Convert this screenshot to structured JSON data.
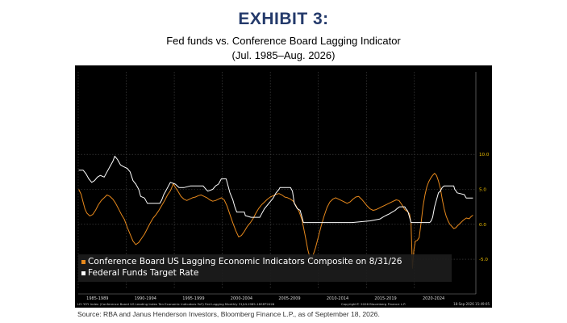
{
  "header": {
    "exhibit": "EXHIBIT 3:",
    "title": "Fed funds vs. Conference Board Lagging Indicator",
    "subtitle": "(Jul. 1985–Aug. 2026)"
  },
  "footer": {
    "source": "Source: RBA and Janus Henderson Investors, Bloomberg Finance L.P., as of September 18, 2026."
  },
  "colors": {
    "background": "#000000",
    "lagging": "#e8891c",
    "fedfunds": "#ffffff",
    "tick_text": "#f0c000"
  },
  "chart_data": {
    "type": "line",
    "ylim": [
      -8.8,
      21.8
    ],
    "xlim": [
      1985.5,
      2026.9
    ],
    "y_ticks": [
      {
        "value": 10.0,
        "label": "10.0"
      },
      {
        "value": 5.0,
        "label": "5.0"
      },
      {
        "value": 0.0,
        "label": "0.0"
      },
      {
        "value": -5.0,
        "label": "-5.0"
      }
    ],
    "x_ticks": [
      {
        "label": "1985-1989",
        "start": 1985.5,
        "end": 1989.5
      },
      {
        "label": "1990-1994",
        "start": 1990.5,
        "end": 1994.5
      },
      {
        "label": "1995-1999",
        "start": 1995.5,
        "end": 1999.5
      },
      {
        "label": "2000-2004",
        "start": 2000.5,
        "end": 2004.5
      },
      {
        "label": "2005-2009",
        "start": 2005.5,
        "end": 2009.5
      },
      {
        "label": "2010-2014",
        "start": 2010.5,
        "end": 2014.5
      },
      {
        "label": "2015-2019",
        "start": 2015.5,
        "end": 2019.5
      },
      {
        "label": "2020-2024",
        "start": 2020.5,
        "end": 2024.5
      }
    ],
    "footer_left": "LEI YOY Index (Conference Board US Leading Index Ten Economic Indicators YoY) Fed Lagging Monthly 31JUL1985-18SEP2026",
    "footer_center": "Copyright© 2026 Bloomberg Finance L.P.",
    "footer_right": "18-Sep-2026 15:49:05",
    "legend": [
      {
        "label": "Conference Board US Lagging Economic Indicators Composite  on 8/31/26",
        "color": "#e8891c"
      },
      {
        "label": "Federal Funds Target Rate",
        "color": "#ffffff"
      }
    ],
    "series": [
      {
        "name": "Conference Board US Lagging Economic Indicators Composite  on 8/31/26",
        "color": "#e8891c",
        "points": [
          [
            1985.55,
            5.0
          ],
          [
            1985.8,
            4.3
          ],
          [
            1986.0,
            3.2
          ],
          [
            1986.2,
            2.2
          ],
          [
            1986.4,
            1.6
          ],
          [
            1986.7,
            1.2
          ],
          [
            1987.0,
            1.4
          ],
          [
            1987.3,
            2.0
          ],
          [
            1987.6,
            2.8
          ],
          [
            1987.9,
            3.4
          ],
          [
            1988.2,
            3.8
          ],
          [
            1988.5,
            4.2
          ],
          [
            1988.8,
            4.0
          ],
          [
            1989.1,
            3.6
          ],
          [
            1989.4,
            3.0
          ],
          [
            1989.7,
            2.2
          ],
          [
            1990.0,
            1.4
          ],
          [
            1990.3,
            0.7
          ],
          [
            1990.6,
            -0.4
          ],
          [
            1990.9,
            -1.4
          ],
          [
            1991.2,
            -2.4
          ],
          [
            1991.5,
            -2.9
          ],
          [
            1991.8,
            -2.6
          ],
          [
            1992.1,
            -2.0
          ],
          [
            1992.4,
            -1.4
          ],
          [
            1992.7,
            -0.6
          ],
          [
            1993.0,
            0.2
          ],
          [
            1993.3,
            0.9
          ],
          [
            1993.6,
            1.4
          ],
          [
            1993.9,
            2.0
          ],
          [
            1994.2,
            2.7
          ],
          [
            1994.5,
            3.4
          ],
          [
            1994.8,
            4.2
          ],
          [
            1995.1,
            4.8
          ],
          [
            1995.4,
            5.8
          ],
          [
            1995.6,
            5.3
          ],
          [
            1995.9,
            4.7
          ],
          [
            1996.2,
            4.0
          ],
          [
            1996.5,
            3.6
          ],
          [
            1996.8,
            3.4
          ],
          [
            1997.1,
            3.6
          ],
          [
            1997.4,
            3.8
          ],
          [
            1997.7,
            3.9
          ],
          [
            1998.0,
            4.1
          ],
          [
            1998.3,
            4.2
          ],
          [
            1998.6,
            4.0
          ],
          [
            1998.9,
            3.8
          ],
          [
            1999.2,
            3.5
          ],
          [
            1999.5,
            3.3
          ],
          [
            1999.8,
            3.4
          ],
          [
            2000.1,
            3.6
          ],
          [
            2000.4,
            3.8
          ],
          [
            2000.7,
            3.5
          ],
          [
            2001.0,
            2.6
          ],
          [
            2001.3,
            1.4
          ],
          [
            2001.6,
            0.2
          ],
          [
            2001.9,
            -0.9
          ],
          [
            2002.2,
            -1.8
          ],
          [
            2002.5,
            -1.6
          ],
          [
            2002.8,
            -1.0
          ],
          [
            2003.1,
            -0.3
          ],
          [
            2003.4,
            0.2
          ],
          [
            2003.7,
            0.8
          ],
          [
            2004.0,
            1.6
          ],
          [
            2004.3,
            2.3
          ],
          [
            2004.6,
            2.8
          ],
          [
            2004.9,
            3.2
          ],
          [
            2005.2,
            3.6
          ],
          [
            2005.5,
            3.9
          ],
          [
            2005.8,
            4.1
          ],
          [
            2006.1,
            4.3
          ],
          [
            2006.4,
            4.4
          ],
          [
            2006.7,
            4.2
          ],
          [
            2007.0,
            3.9
          ],
          [
            2007.3,
            3.8
          ],
          [
            2007.6,
            3.6
          ],
          [
            2007.9,
            3.3
          ],
          [
            2008.2,
            2.6
          ],
          [
            2008.5,
            1.8
          ],
          [
            2008.8,
            0.6
          ],
          [
            2009.1,
            -1.4
          ],
          [
            2009.4,
            -3.6
          ],
          [
            2009.7,
            -5.2
          ],
          [
            2009.9,
            -4.6
          ],
          [
            2010.2,
            -3.4
          ],
          [
            2010.5,
            -1.8
          ],
          [
            2010.8,
            -0.2
          ],
          [
            2011.1,
            1.2
          ],
          [
            2011.4,
            2.4
          ],
          [
            2011.7,
            3.2
          ],
          [
            2012.0,
            3.6
          ],
          [
            2012.3,
            3.8
          ],
          [
            2012.6,
            3.6
          ],
          [
            2012.9,
            3.4
          ],
          [
            2013.2,
            3.2
          ],
          [
            2013.5,
            3.0
          ],
          [
            2013.8,
            3.2
          ],
          [
            2014.1,
            3.6
          ],
          [
            2014.4,
            3.9
          ],
          [
            2014.7,
            4.0
          ],
          [
            2015.0,
            3.6
          ],
          [
            2015.3,
            3.1
          ],
          [
            2015.6,
            2.6
          ],
          [
            2015.9,
            2.2
          ],
          [
            2016.2,
            2.0
          ],
          [
            2016.5,
            2.1
          ],
          [
            2016.8,
            2.3
          ],
          [
            2017.1,
            2.5
          ],
          [
            2017.4,
            2.7
          ],
          [
            2017.7,
            2.9
          ],
          [
            2018.0,
            3.1
          ],
          [
            2018.3,
            3.3
          ],
          [
            2018.6,
            3.5
          ],
          [
            2018.9,
            3.4
          ],
          [
            2019.2,
            2.8
          ],
          [
            2019.5,
            2.1
          ],
          [
            2019.8,
            1.8
          ],
          [
            2020.0,
            1.5
          ],
          [
            2020.15,
            0.2
          ],
          [
            2020.3,
            -6.3
          ],
          [
            2020.45,
            -3.6
          ],
          [
            2020.6,
            -2.4
          ],
          [
            2020.8,
            -2.3
          ],
          [
            2021.0,
            -1.9
          ],
          [
            2021.2,
            0.2
          ],
          [
            2021.4,
            2.6
          ],
          [
            2021.6,
            4.2
          ],
          [
            2021.8,
            5.4
          ],
          [
            2022.0,
            6.1
          ],
          [
            2022.2,
            6.6
          ],
          [
            2022.4,
            7.0
          ],
          [
            2022.6,
            7.3
          ],
          [
            2022.8,
            7.0
          ],
          [
            2023.0,
            6.2
          ],
          [
            2023.2,
            5.2
          ],
          [
            2023.4,
            3.6
          ],
          [
            2023.6,
            2.2
          ],
          [
            2023.8,
            1.2
          ],
          [
            2024.0,
            0.5
          ],
          [
            2024.2,
            0.0
          ],
          [
            2024.4,
            -0.3
          ],
          [
            2024.6,
            -0.6
          ],
          [
            2024.8,
            -0.5
          ],
          [
            2025.0,
            -0.2
          ],
          [
            2025.3,
            0.2
          ],
          [
            2025.6,
            0.6
          ],
          [
            2025.9,
            0.9
          ],
          [
            2026.2,
            0.8
          ],
          [
            2026.4,
            1.1
          ],
          [
            2026.6,
            1.3
          ]
        ]
      },
      {
        "name": "Federal Funds Target Rate",
        "color": "#ffffff",
        "points": [
          [
            1985.55,
            7.75
          ],
          [
            1986.0,
            7.75
          ],
          [
            1986.3,
            7.25
          ],
          [
            1986.6,
            6.5
          ],
          [
            1986.9,
            6.0
          ],
          [
            1987.2,
            6.25
          ],
          [
            1987.5,
            6.75
          ],
          [
            1987.8,
            7.0
          ],
          [
            1988.2,
            6.75
          ],
          [
            1988.5,
            7.5
          ],
          [
            1988.8,
            8.25
          ],
          [
            1989.1,
            9.0
          ],
          [
            1989.3,
            9.75
          ],
          [
            1989.6,
            9.25
          ],
          [
            1989.9,
            8.5
          ],
          [
            1990.2,
            8.25
          ],
          [
            1990.6,
            8.0
          ],
          [
            1990.9,
            7.5
          ],
          [
            1991.2,
            6.25
          ],
          [
            1991.5,
            5.75
          ],
          [
            1991.8,
            5.0
          ],
          [
            1992.0,
            4.0
          ],
          [
            1992.4,
            3.75
          ],
          [
            1992.7,
            3.0
          ],
          [
            1993.0,
            3.0
          ],
          [
            1993.6,
            3.0
          ],
          [
            1994.0,
            3.0
          ],
          [
            1994.2,
            3.5
          ],
          [
            1994.4,
            4.25
          ],
          [
            1994.6,
            4.75
          ],
          [
            1994.9,
            5.5
          ],
          [
            1995.1,
            6.0
          ],
          [
            1995.6,
            5.75
          ],
          [
            1996.0,
            5.25
          ],
          [
            1996.5,
            5.25
          ],
          [
            1997.2,
            5.5
          ],
          [
            1997.8,
            5.5
          ],
          [
            1998.5,
            5.5
          ],
          [
            1998.8,
            5.0
          ],
          [
            1999.0,
            4.75
          ],
          [
            1999.5,
            5.0
          ],
          [
            1999.8,
            5.5
          ],
          [
            2000.1,
            5.75
          ],
          [
            2000.4,
            6.5
          ],
          [
            2000.9,
            6.5
          ],
          [
            2001.1,
            5.5
          ],
          [
            2001.3,
            4.5
          ],
          [
            2001.6,
            3.5
          ],
          [
            2001.8,
            2.5
          ],
          [
            2002.0,
            1.75
          ],
          [
            2002.8,
            1.75
          ],
          [
            2002.9,
            1.25
          ],
          [
            2003.5,
            1.0
          ],
          [
            2004.4,
            1.0
          ],
          [
            2004.6,
            1.5
          ],
          [
            2004.9,
            2.25
          ],
          [
            2005.2,
            2.75
          ],
          [
            2005.5,
            3.25
          ],
          [
            2005.8,
            3.75
          ],
          [
            2006.1,
            4.5
          ],
          [
            2006.4,
            5.0
          ],
          [
            2006.5,
            5.25
          ],
          [
            2007.6,
            5.25
          ],
          [
            2007.8,
            4.75
          ],
          [
            2008.0,
            3.0
          ],
          [
            2008.3,
            2.25
          ],
          [
            2008.6,
            2.0
          ],
          [
            2008.8,
            1.0
          ],
          [
            2008.95,
            0.25
          ],
          [
            2010.0,
            0.25
          ],
          [
            2012.0,
            0.25
          ],
          [
            2014.0,
            0.25
          ],
          [
            2015.9,
            0.5
          ],
          [
            2016.9,
            0.75
          ],
          [
            2017.2,
            1.0
          ],
          [
            2017.5,
            1.25
          ],
          [
            2017.9,
            1.5
          ],
          [
            2018.2,
            1.75
          ],
          [
            2018.5,
            2.0
          ],
          [
            2018.7,
            2.25
          ],
          [
            2018.95,
            2.5
          ],
          [
            2019.5,
            2.5
          ],
          [
            2019.6,
            2.25
          ],
          [
            2019.75,
            2.0
          ],
          [
            2019.85,
            1.75
          ],
          [
            2020.15,
            0.25
          ],
          [
            2021.0,
            0.25
          ],
          [
            2022.1,
            0.25
          ],
          [
            2022.25,
            0.5
          ],
          [
            2022.4,
            1.0
          ],
          [
            2022.5,
            1.75
          ],
          [
            2022.6,
            2.5
          ],
          [
            2022.75,
            3.25
          ],
          [
            2022.9,
            4.0
          ],
          [
            2023.0,
            4.5
          ],
          [
            2023.2,
            4.75
          ],
          [
            2023.4,
            5.25
          ],
          [
            2023.6,
            5.5
          ],
          [
            2024.6,
            5.5
          ],
          [
            2024.7,
            5.0
          ],
          [
            2024.85,
            4.75
          ],
          [
            2024.95,
            4.5
          ],
          [
            2025.7,
            4.25
          ],
          [
            2025.8,
            4.0
          ],
          [
            2025.9,
            3.75
          ],
          [
            2026.6,
            3.75
          ]
        ]
      }
    ]
  }
}
